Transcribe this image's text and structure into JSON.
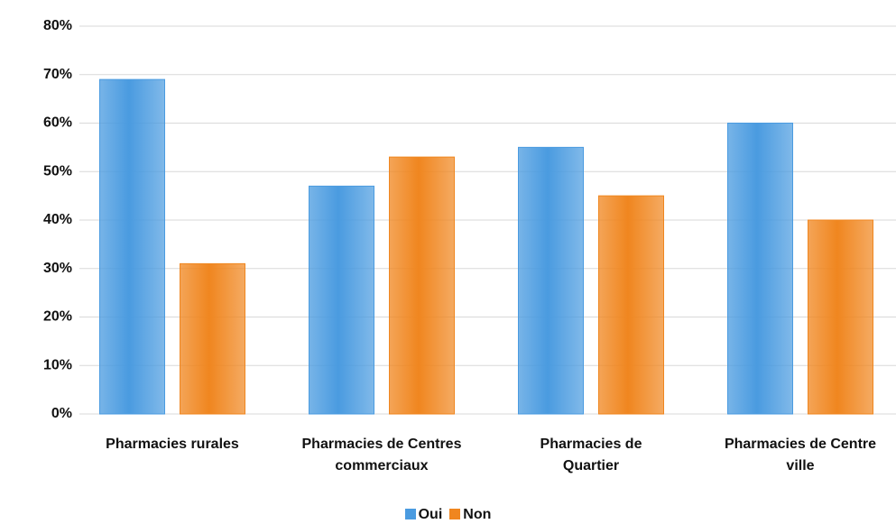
{
  "chart_data": {
    "type": "bar",
    "categories": [
      "Pharmacies rurales",
      "Pharmacies de Centres\ncommerciaux",
      "Pharmacies de\nQuartier",
      "Pharmacies de Centre\nville"
    ],
    "series": [
      {
        "name": "Oui",
        "color": "#4a9be0",
        "values": [
          69,
          47,
          55,
          60
        ]
      },
      {
        "name": "Non",
        "color": "#f0861f",
        "values": [
          31,
          53,
          45,
          40
        ]
      }
    ],
    "ylim": [
      0,
      80
    ],
    "yticks": [
      {
        "value": 0,
        "label": "0%"
      },
      {
        "value": 10,
        "label": "10%"
      },
      {
        "value": 20,
        "label": "20%"
      },
      {
        "value": 30,
        "label": "30%"
      },
      {
        "value": 40,
        "label": "40%"
      },
      {
        "value": 50,
        "label": "50%"
      },
      {
        "value": 60,
        "label": "60%"
      },
      {
        "value": 70,
        "label": "70%"
      },
      {
        "value": 80,
        "label": "80%"
      }
    ],
    "grid": true,
    "legend": "bottom"
  }
}
